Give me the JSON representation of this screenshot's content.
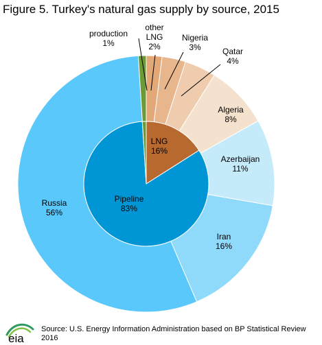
{
  "title": "Figure 5. Turkey's natural gas supply by source,  2015",
  "source": "Source: U.S. Energy Information Administration based on BP Statistical Review 2016",
  "logo_text": "eia",
  "chart_data": [
    {
      "type": "pie",
      "ring": "inner",
      "slices": [
        {
          "label": "LNG",
          "value_label": "16%",
          "value": 16,
          "color": "#B8692F"
        },
        {
          "label": "Pipeline",
          "value_label": "83%",
          "value": 83,
          "color": "#0096D6"
        },
        {
          "label": "",
          "value_label": "",
          "value": 1,
          "color": "#6E9A35"
        }
      ]
    },
    {
      "type": "pie",
      "ring": "outer",
      "slices": [
        {
          "label": "other LNG",
          "value_label": "2%",
          "value": 2,
          "color": "#E3A878"
        },
        {
          "label": "Nigeria",
          "value_label": "3%",
          "value": 3,
          "color": "#E8B68D"
        },
        {
          "label": "Qatar",
          "value_label": "4%",
          "value": 4,
          "color": "#EECCAD"
        },
        {
          "label": "Algeria",
          "value_label": "8%",
          "value": 8,
          "color": "#F5E2CE"
        },
        {
          "label": "Azerbaijan",
          "value_label": "11%",
          "value": 11,
          "color": "#C5EBFA"
        },
        {
          "label": "Iran",
          "value_label": "16%",
          "value": 16,
          "color": "#8FD9FA"
        },
        {
          "label": "Russia",
          "value_label": "56%",
          "value": 56,
          "color": "#5AC8FA"
        },
        {
          "label": "production",
          "value_label": "1%",
          "value": 1,
          "color": "#6E9A35"
        }
      ]
    }
  ]
}
